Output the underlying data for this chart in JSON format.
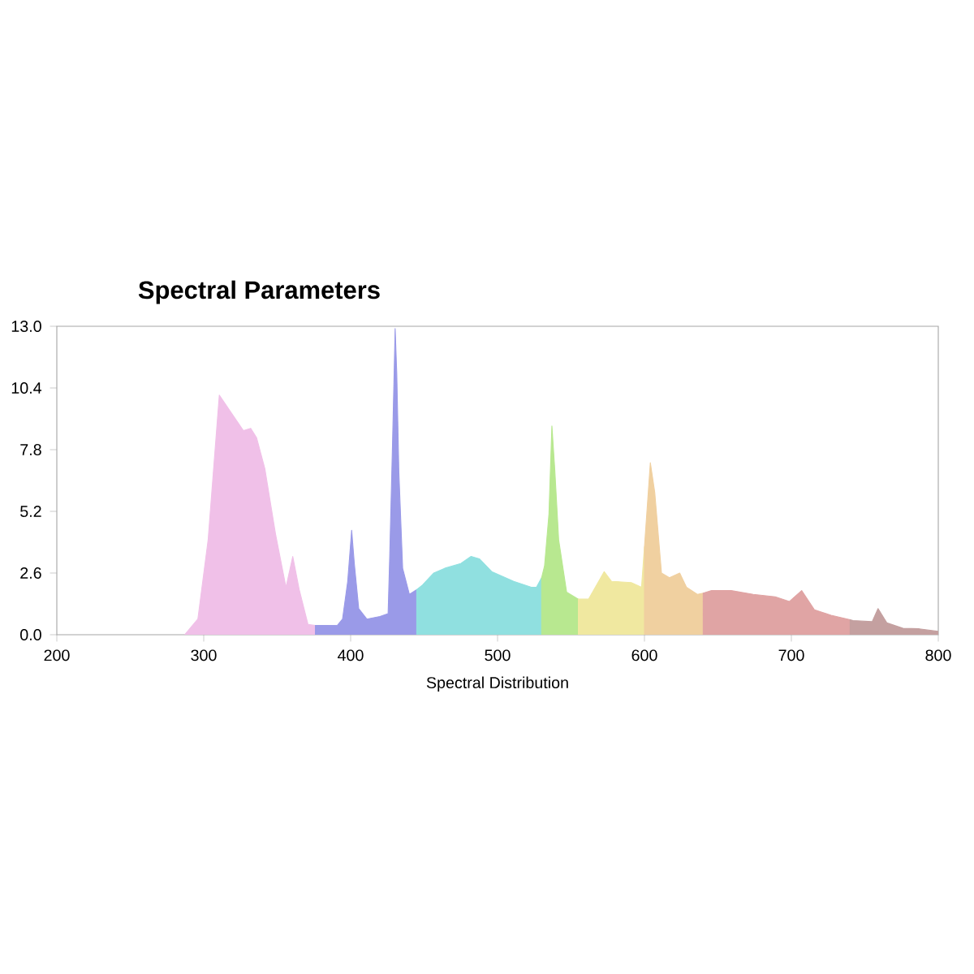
{
  "chart_data": {
    "type": "area",
    "title": "Spectral Parameters",
    "xlabel": "Spectral Distribution",
    "xlim": [
      200,
      800
    ],
    "ylim": [
      0,
      13
    ],
    "xticks": [
      200,
      300,
      400,
      500,
      600,
      700,
      800
    ],
    "yticks": [
      {
        "value": 0,
        "label": "0.0"
      },
      2.6,
      5.2,
      7.8,
      10.4,
      {
        "value": 13,
        "label": "13.0"
      }
    ],
    "grid": false,
    "series": [
      {
        "color": "#f0c0e8",
        "x": [
          287,
          296,
          303,
          310.6,
          327,
          332,
          336,
          341.6,
          349,
          356,
          360.6,
          365,
          371,
          376
        ],
        "values": [
          0,
          0.66,
          4.0,
          10.1,
          8.6,
          8.7,
          8.3,
          7.0,
          4.2,
          2.0,
          3.3,
          1.9,
          0.43,
          0.39
        ]
      },
      {
        "color": "#9a9ae8",
        "x": [
          376,
          391,
          394.5,
          398,
          400.7,
          402.5,
          405.5,
          411,
          420,
          425.5,
          426.6,
          428.5,
          430.3,
          431.4,
          432.8,
          435.4,
          440,
          445
        ],
        "values": [
          0.39,
          0.4,
          0.66,
          2.25,
          4.4,
          3.0,
          1.1,
          0.66,
          0.77,
          0.89,
          3.3,
          8.0,
          12.9,
          11.0,
          6.9,
          2.8,
          1.7,
          1.9
        ]
      },
      {
        "color": "#90e0e0",
        "x": [
          445,
          449,
          456.6,
          464,
          475,
          482,
          487.6,
          496,
          511,
          523,
          526.5,
          530
        ],
        "values": [
          1.9,
          2.1,
          2.6,
          2.8,
          3.0,
          3.3,
          3.2,
          2.66,
          2.25,
          2.0,
          2.0,
          2.4
        ]
      },
      {
        "color": "#b8e890",
        "x": [
          530,
          532,
          535,
          537,
          539,
          541.6,
          547,
          555
        ],
        "values": [
          2.4,
          2.9,
          5.1,
          8.8,
          6.9,
          4.0,
          1.8,
          1.5
        ]
      },
      {
        "color": "#f0e8a0",
        "x": [
          555,
          562,
          572.6,
          577.6,
          591,
          598,
          600
        ],
        "values": [
          1.5,
          1.5,
          2.66,
          2.25,
          2.2,
          2.0,
          3.7
        ]
      },
      {
        "color": "#f0d0a0",
        "x": [
          600,
          604,
          607,
          611.6,
          617,
          624,
          628.6,
          636,
          640
        ],
        "values": [
          3.7,
          7.25,
          6.0,
          2.6,
          2.4,
          2.6,
          2.0,
          1.7,
          1.75
        ]
      },
      {
        "color": "#e0a4a4",
        "x": [
          640,
          645.7,
          659,
          674,
          689,
          698.6,
          707,
          715.7,
          727,
          740
        ],
        "values": [
          1.75,
          1.86,
          1.86,
          1.7,
          1.6,
          1.4,
          1.86,
          1.05,
          0.82,
          0.63
        ]
      },
      {
        "color": "#c4a0a0",
        "x": [
          740,
          742,
          755,
          759,
          765,
          776,
          787,
          800
        ],
        "values": [
          0.63,
          0.6,
          0.55,
          1.1,
          0.5,
          0.27,
          0.25,
          0.14
        ]
      }
    ]
  }
}
